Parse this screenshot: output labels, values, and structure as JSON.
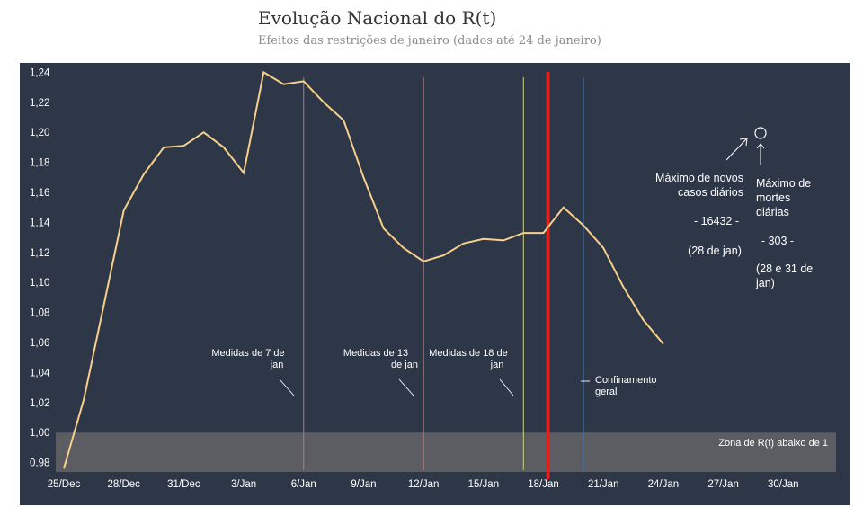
{
  "title": "Evolução Nacional do R(t)",
  "subtitle": "Efeitos das restrições de janeiro (dados até 24 de janeiro)",
  "colors": {
    "background": "#2e3747",
    "line": "#f7d08a",
    "zone": "#6b6b6b",
    "marker_7": "#b07a8a",
    "marker_13": "#d9707a",
    "marker_18": "#c8d27a",
    "marker_red": "#e01f1f",
    "marker_blue": "#3f7fc4",
    "text": "#ffffff"
  },
  "chart_data": {
    "type": "line",
    "title": "Evolução Nacional do R(t)",
    "subtitle": "Efeitos das restrições de janeiro (dados até 24 de janeiro)",
    "x_ticks": [
      "25/Dec",
      "28/Dec",
      "31/Dec",
      "3/Jan",
      "6/Jan",
      "9/Jan",
      "12/Jan",
      "15/Jan",
      "18/Jan",
      "21/Jan",
      "24/Jan",
      "27/Jan",
      "30/Jan"
    ],
    "y_ticks": [
      "0,98",
      "1,00",
      "1,02",
      "1,04",
      "1,06",
      "1,08",
      "1,10",
      "1,12",
      "1,14",
      "1,16",
      "1,18",
      "1,20",
      "1,22",
      "1,24"
    ],
    "ylim": [
      0.975,
      1.245
    ],
    "series": [
      {
        "x": [
          "25/Dec",
          "26/Dec",
          "27/Dec",
          "28/Dec",
          "29/Dec",
          "30/Dec",
          "31/Dec",
          "1/Jan",
          "2/Jan",
          "3/Jan",
          "4/Jan",
          "5/Jan",
          "6/Jan",
          "7/Jan",
          "8/Jan",
          "9/Jan",
          "10/Jan",
          "11/Jan",
          "12/Jan",
          "13/Jan",
          "14/Jan",
          "15/Jan",
          "16/Jan",
          "17/Jan",
          "18/Jan",
          "19/Jan",
          "20/Jan",
          "21/Jan",
          "22/Jan",
          "23/Jan",
          "24/Jan"
        ],
        "values": [
          0.976,
          1.022,
          1.085,
          1.148,
          1.172,
          1.19,
          1.191,
          1.2,
          1.19,
          1.173,
          1.24,
          1.232,
          1.234,
          1.22,
          1.208,
          1.17,
          1.136,
          1.123,
          1.114,
          1.118,
          1.126,
          1.129,
          1.128,
          1.133,
          1.133,
          1.15,
          1.138,
          1.123,
          1.097,
          1.075,
          1.059
        ]
      }
    ],
    "zone_range": [
      0.975,
      1.0
    ],
    "zone_label": "Zona de R(t) abaixo de 1",
    "markers": [
      {
        "x": "6/Jan",
        "label": "Medidas de 7 de jan",
        "line1": "Medidas de 7 de",
        "line2": "jan",
        "color_key": "marker_7"
      },
      {
        "x": "12/Jan",
        "label": "Medidas de 13 de jan",
        "line1": "Medidas de 13",
        "line2": "de jan",
        "color_key": "marker_13"
      },
      {
        "x": "17/Jan",
        "label": "Medidas de 18 de jan",
        "line1": "Medidas de 18 de",
        "line2": "jan",
        "color_key": "marker_18"
      },
      {
        "x": "20/Jan",
        "label": "Confinamento geral",
        "line1": "Confinamento",
        "line2": "geral",
        "color_key": "marker_blue"
      }
    ],
    "red_marker_x": "18/Jan",
    "annotations": {
      "cases_title_1": "Máximo de novos",
      "cases_title_2": "casos diários",
      "cases_value": "- 16432 -",
      "cases_date": "(28 de jan)",
      "deaths_title_1": "Máximo de",
      "deaths_title_2": "mortes",
      "deaths_title_3": "diárias",
      "deaths_value": "- 303 -",
      "deaths_date_1": "(28 e 31 de",
      "deaths_date_2": "jan)"
    }
  }
}
